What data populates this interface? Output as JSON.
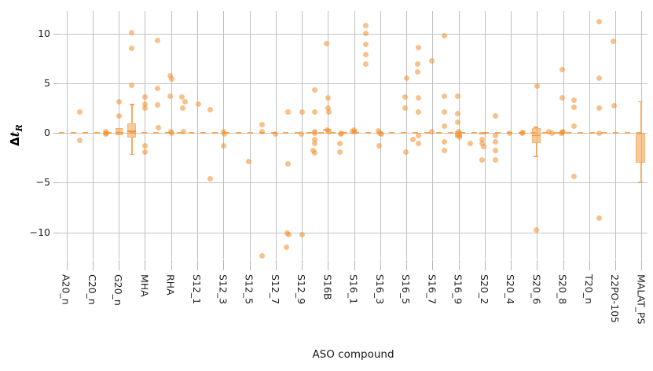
{
  "axes": {
    "xlabel": "ASO compound",
    "ylabel": {
      "prefix": "Δ",
      "main": "t",
      "sub": "R"
    },
    "yticks": [
      {
        "label": "10",
        "value": 10
      },
      {
        "label": "5",
        "value": 5
      },
      {
        "label": "0",
        "value": 0
      },
      {
        "label": "−5",
        "value": -5
      },
      {
        "label": "−10",
        "value": -10
      }
    ]
  },
  "style": {
    "dot_color": "#f28e2b",
    "dot_alpha": 0.55,
    "box_fill": "rgba(244,148,48,0.5)",
    "zero_line_color": "#f79b4a",
    "grid_color": "#bfbfbf",
    "text_color": "#1a1a1a",
    "background": "#ffffff"
  },
  "chart_data": {
    "type": "scatter",
    "subtype": "strip-plot with overlaid boxplots",
    "title": "",
    "xlabel": "ASO compound",
    "ylabel": "ΔtR",
    "ylim": [
      -13,
      12.5
    ],
    "grid": true,
    "baseline": 0,
    "baseline_style": "orange dashed horizontal line at y=0",
    "categories": [
      "A20_n",
      "C20_n",
      "G20_n",
      "MHA",
      "RHA",
      "S12_1",
      "S12_3",
      "S12_5",
      "S12_7",
      "S12_9",
      "S16B",
      "S16_1",
      "S16_3",
      "S16_5",
      "S16_7",
      "S16_9",
      "S20_2",
      "S20_4",
      "S20_6",
      "S20_8",
      "T20_n",
      "22PO-105",
      "MALAT_PS"
    ],
    "series": [
      {
        "name": "A20_n",
        "points": [
          [
            2.1,
            17
          ],
          [
            -0.75,
            17
          ]
        ],
        "box": null
      },
      {
        "name": "C20_n",
        "points": [
          [
            0.1,
            17
          ],
          [
            -0.15,
            17
          ],
          [
            0,
            18
          ]
        ],
        "box": null
      },
      {
        "name": "G20_n",
        "points": [
          [
            3.1,
            0
          ],
          [
            1.7,
            0
          ]
        ],
        "box": {
          "q1": -0.2,
          "q3": 0.45,
          "med": 0.1,
          "wlo": null,
          "whi": null,
          "dx": 0,
          "w": 9
        }
      },
      {
        "name": "MHA",
        "points": [
          [
            10.1,
            -17
          ],
          [
            8.5,
            -17
          ],
          [
            4.8,
            -17
          ],
          [
            3.6,
            0
          ],
          [
            2.9,
            0
          ],
          [
            2.5,
            0
          ],
          [
            -1.3,
            0
          ],
          [
            -1.9,
            0
          ],
          [
            9.3,
            16
          ],
          [
            4.5,
            16
          ],
          [
            2.8,
            16
          ],
          [
            0.5,
            17
          ]
        ],
        "box": {
          "q1": -0.5,
          "q3": 0.95,
          "med": 0.2,
          "wlo": -2.1,
          "whi": 2.9,
          "dx": -16.5,
          "w": 11
        }
      },
      {
        "name": "RHA",
        "points": [
          [
            5.7,
            -1
          ],
          [
            5.4,
            1
          ],
          [
            3.7,
            -1
          ],
          [
            0.15,
            0
          ],
          [
            -0.05,
            1
          ],
          [
            3.6,
            14
          ],
          [
            3.1,
            18
          ],
          [
            2.5,
            15
          ],
          [
            0.1,
            16
          ]
        ],
        "box": null
      },
      {
        "name": "S12_1",
        "points": [
          [
            2.9,
            1
          ],
          [
            2.3,
            16
          ],
          [
            -4.6,
            16
          ]
        ],
        "box": null
      },
      {
        "name": "S12_3",
        "points": [
          [
            0.1,
            0
          ],
          [
            -0.1,
            1
          ],
          [
            -1.3,
            0
          ]
        ],
        "box": null
      },
      {
        "name": "S12_5",
        "points": [
          [
            -2.85,
            -1
          ],
          [
            0.85,
            16
          ],
          [
            0.1,
            16
          ],
          [
            -12.4,
            16
          ]
        ],
        "box": null
      },
      {
        "name": "S12_7",
        "points": [
          [
            -0.1,
            0
          ],
          [
            2.1,
            16
          ],
          [
            -3.1,
            16
          ],
          [
            -10.1,
            15
          ],
          [
            -10.2,
            17
          ],
          [
            -11.5,
            14
          ]
        ],
        "box": null
      },
      {
        "name": "S12_9",
        "points": [
          [
            2.1,
            0
          ],
          [
            -0.1,
            -1
          ],
          [
            -10.2,
            0
          ],
          [
            4.3,
            16
          ],
          [
            2.1,
            16
          ],
          [
            0.15,
            16
          ],
          [
            0,
            16
          ],
          [
            -0.7,
            16
          ],
          [
            -1.1,
            16
          ],
          [
            -1.8,
            14
          ],
          [
            -2.0,
            16
          ]
        ],
        "box": null
      },
      {
        "name": "S16B",
        "points": [
          [
            9.0,
            -2
          ],
          [
            3.5,
            0
          ],
          [
            2.5,
            0
          ],
          [
            2.1,
            1
          ],
          [
            0.3,
            -1
          ],
          [
            0.15,
            1
          ],
          [
            -0.1,
            16
          ],
          [
            0,
            17
          ],
          [
            -1.1,
            15
          ],
          [
            -1.9,
            15
          ]
        ],
        "box": {
          "q1": 0.2,
          "q3": 0.42,
          "med": null,
          "wlo": null,
          "whi": null,
          "dx": -1,
          "w": 10
        }
      },
      {
        "name": "S16_1",
        "points": [
          [
            0.1,
            -2
          ],
          [
            0.3,
            0
          ],
          [
            0.15,
            1
          ],
          [
            10.8,
            15
          ],
          [
            10.0,
            15
          ],
          [
            8.9,
            15
          ],
          [
            7.9,
            15
          ],
          [
            6.9,
            15
          ]
        ],
        "box": null
      },
      {
        "name": "S16_3",
        "points": [
          [
            0.2,
            -2
          ],
          [
            0,
            0
          ],
          [
            -0.15,
            2
          ],
          [
            -1.3,
            -1
          ]
        ],
        "box": null
      },
      {
        "name": "S16_5",
        "points": [
          [
            5.5,
            0
          ],
          [
            3.6,
            -2
          ],
          [
            2.5,
            -2
          ],
          [
            -1.9,
            -1
          ],
          [
            -0.7,
            8
          ],
          [
            8.6,
            15
          ],
          [
            6.9,
            14
          ],
          [
            6.1,
            14
          ],
          [
            3.5,
            15
          ],
          [
            2.1,
            15
          ],
          [
            -0.25,
            15
          ],
          [
            -1.1,
            15
          ]
        ],
        "box": null
      },
      {
        "name": "S16_7",
        "points": [
          [
            7.2,
            -1
          ],
          [
            0.1,
            -1
          ],
          [
            9.8,
            15
          ],
          [
            3.7,
            15
          ],
          [
            2.1,
            15
          ],
          [
            0.7,
            15
          ],
          [
            -0.9,
            15
          ],
          [
            -1.8,
            15
          ]
        ],
        "box": null
      },
      {
        "name": "S16_9",
        "points": [
          [
            3.7,
            -1
          ],
          [
            1.9,
            -1
          ],
          [
            1.1,
            -1
          ],
          [
            0.1,
            0
          ],
          [
            -0.2,
            0
          ],
          [
            -0.4,
            1
          ],
          [
            -1.1,
            15
          ]
        ],
        "box": {
          "q1": -0.5,
          "q3": 0.15,
          "med": null,
          "wlo": null,
          "whi": null,
          "dx": 0,
          "w": 9
        }
      },
      {
        "name": "S20_2",
        "points": [
          [
            -0.7,
            -3
          ],
          [
            -1.1,
            -3
          ],
          [
            -1.4,
            -1
          ],
          [
            -2.7,
            -3
          ],
          [
            1.7,
            14
          ],
          [
            -0.3,
            14
          ],
          [
            -0.9,
            14
          ],
          [
            -1.8,
            14
          ],
          [
            -2.7,
            14
          ]
        ],
        "box": {
          "q1": -0.12,
          "q3": 0.08,
          "med": null,
          "wlo": null,
          "whi": null,
          "dx": -2,
          "w": 9
        }
      },
      {
        "name": "S20_4",
        "points": [
          [
            -0.05,
            -2
          ],
          [
            0,
            14
          ],
          [
            0.05,
            15
          ]
        ],
        "box": null
      },
      {
        "name": "S20_6",
        "points": [
          [
            4.7,
            0
          ],
          [
            -9.8,
            -1
          ],
          [
            0.1,
            15
          ]
        ],
        "box": {
          "q1": -1.05,
          "q3": 0.5,
          "med": -0.2,
          "wlo": -2.3,
          "whi": 0.6,
          "dx": -1,
          "w": 11
        }
      },
      {
        "name": "S20_8",
        "points": [
          [
            6.4,
            -1
          ],
          [
            3.5,
            -1
          ],
          [
            0.05,
            -1
          ],
          [
            -0.05,
            -2
          ],
          [
            0.1,
            0
          ],
          [
            0,
            -14
          ],
          [
            3.3,
            14
          ],
          [
            2.6,
            14
          ],
          [
            0.7,
            14
          ],
          [
            -4.4,
            14
          ]
        ],
        "box": null
      },
      {
        "name": "T20_n",
        "points": [
          [
            11.2,
            13
          ],
          [
            5.5,
            13
          ],
          [
            2.5,
            13
          ],
          [
            -0.05,
            13
          ],
          [
            -8.6,
            13
          ]
        ],
        "box": null
      },
      {
        "name": "22PO-105",
        "points": [
          [
            9.2,
            -3
          ],
          [
            2.7,
            -2
          ]
        ],
        "box": null
      },
      {
        "name": "MALAT_PS",
        "points": [],
        "box": {
          "q1": -3.0,
          "q3": -0.1,
          "med": null,
          "wlo": -4.9,
          "whi": 3.2,
          "dx": -1,
          "w": 12
        }
      }
    ]
  }
}
